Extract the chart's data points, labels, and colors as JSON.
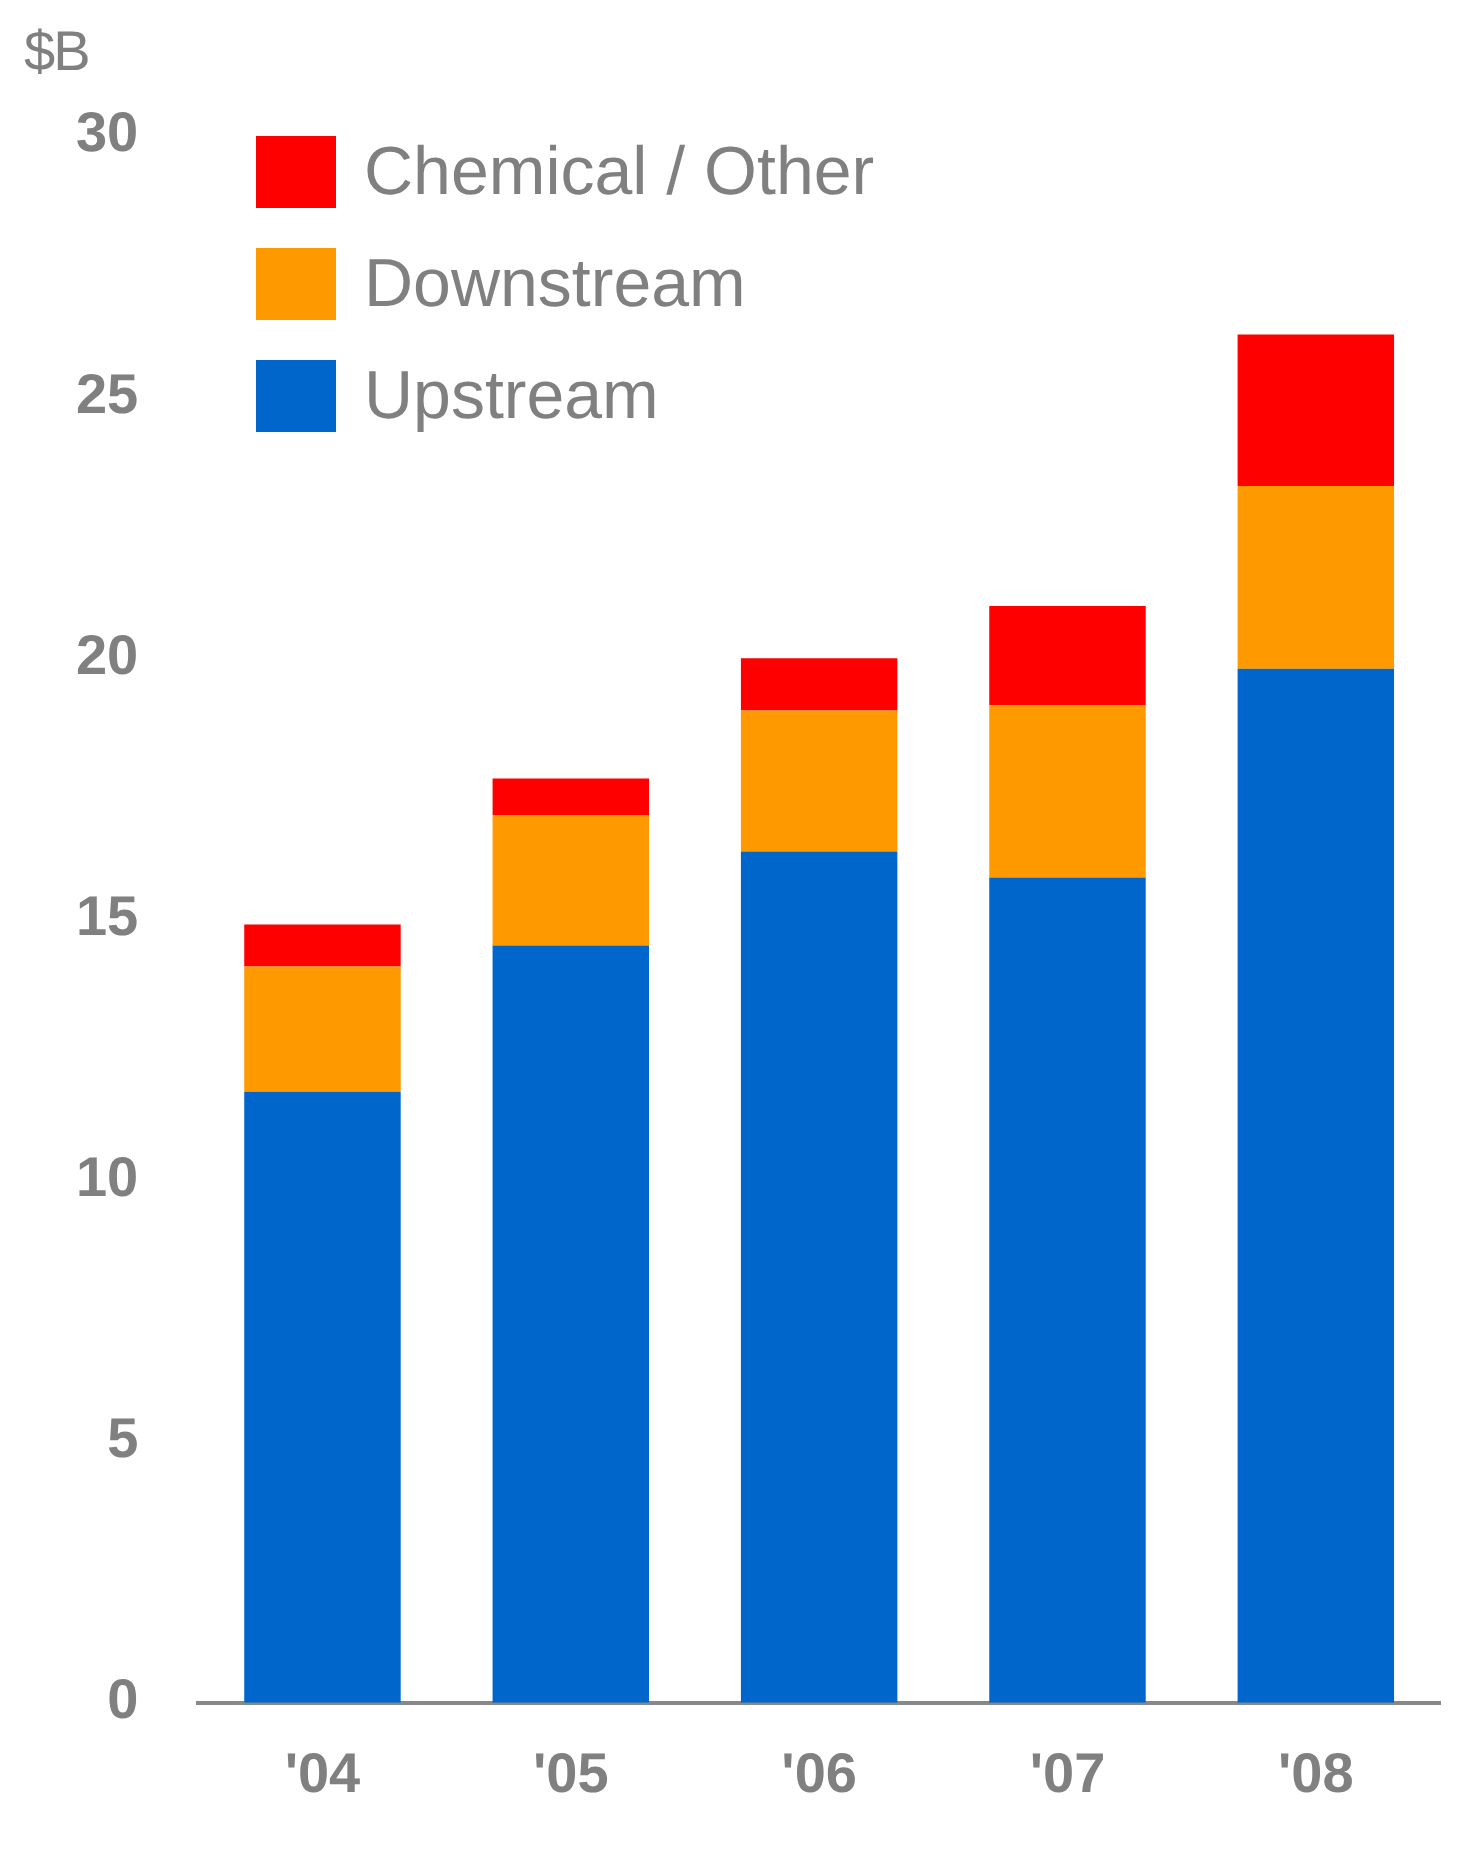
{
  "chart_data": {
    "type": "bar",
    "stacked": true,
    "ylabel": "$B",
    "categories": [
      "'04",
      "'05",
      "'06",
      "'07",
      "'08"
    ],
    "series": [
      {
        "name": "Upstream",
        "color": "#0066cc",
        "values": [
          11.7,
          14.5,
          16.3,
          15.8,
          19.8
        ]
      },
      {
        "name": "Downstream",
        "color": "#ff9900",
        "values": [
          2.4,
          2.5,
          2.7,
          3.3,
          3.5
        ]
      },
      {
        "name": "Chemical / Other",
        "color": "#ff0000",
        "values": [
          0.8,
          0.7,
          1.0,
          1.9,
          2.9
        ]
      }
    ],
    "ylim": [
      0,
      30
    ],
    "yticks": [
      0,
      5,
      10,
      15,
      20,
      25,
      30
    ],
    "grid": false,
    "legend": "top left"
  }
}
